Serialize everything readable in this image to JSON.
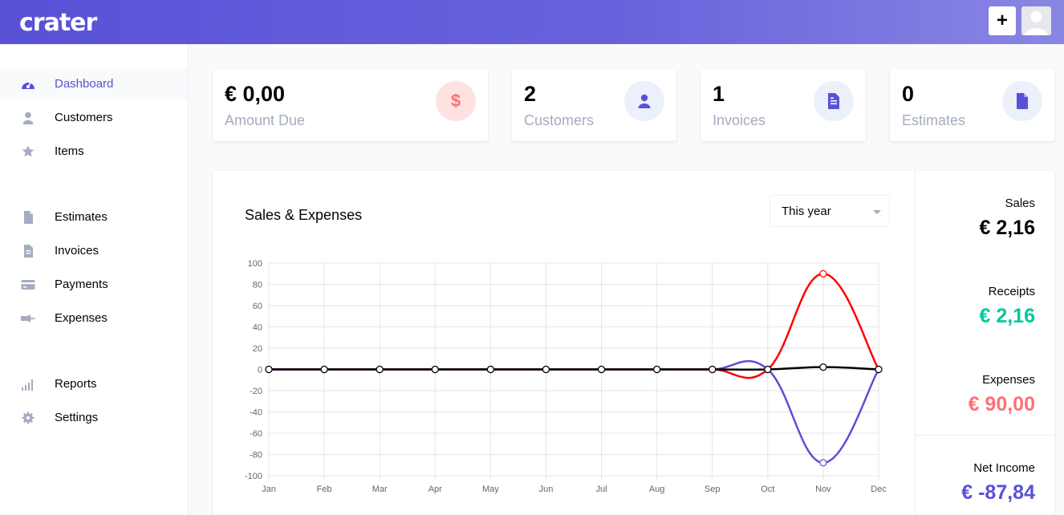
{
  "app": {
    "logo": "crater"
  },
  "header": {
    "add_label": "+"
  },
  "sidebar": {
    "items": [
      {
        "label": "Dashboard",
        "icon": "dashboard-icon",
        "active": true
      },
      {
        "label": "Customers",
        "icon": "user-icon"
      },
      {
        "label": "Items",
        "icon": "star-icon"
      },
      {
        "label": "Estimates",
        "icon": "document-icon"
      },
      {
        "label": "Invoices",
        "icon": "document-text-icon"
      },
      {
        "label": "Payments",
        "icon": "credit-card-icon"
      },
      {
        "label": "Expenses",
        "icon": "receipt-icon"
      },
      {
        "label": "Reports",
        "icon": "bar-chart-icon"
      },
      {
        "label": "Settings",
        "icon": "gear-icon"
      }
    ]
  },
  "stats": [
    {
      "value": "€ 0,00",
      "label": "Amount Due",
      "icon": "dollar-icon",
      "icon_color": "#fb7178",
      "icon_bg": "#fee2e2"
    },
    {
      "value": "2",
      "label": "Customers",
      "icon": "user-icon",
      "icon_color": "#5851d8",
      "icon_bg": "#ebf0fb"
    },
    {
      "value": "1",
      "label": "Invoices",
      "icon": "document-text-icon",
      "icon_color": "#5851d8",
      "icon_bg": "#ebf0fb"
    },
    {
      "value": "0",
      "label": "Estimates",
      "icon": "document-icon",
      "icon_color": "#5851d8",
      "icon_bg": "#ebf0fb"
    }
  ],
  "chart": {
    "title": "Sales & Expenses",
    "period": "This year"
  },
  "summary": {
    "sales_label": "Sales",
    "sales_value": "€ 2,16",
    "receipts_label": "Receipts",
    "receipts_value": "€ 2,16",
    "expenses_label": "Expenses",
    "expenses_value": "€ 90,00",
    "net_label": "Net Income",
    "net_value": "€ -87,84"
  },
  "colors": {
    "accent": "#5851d8",
    "sales": "#040405",
    "receipts": "#00c99c",
    "expenses": "#fb7178",
    "net": "#5851d8"
  },
  "chart_data": {
    "type": "line",
    "categories": [
      "Jan",
      "Feb",
      "Mar",
      "Apr",
      "May",
      "Jun",
      "Jul",
      "Aug",
      "Sep",
      "Oct",
      "Nov",
      "Dec"
    ],
    "ylim": [
      -100,
      100
    ],
    "yticks": [
      100,
      80,
      60,
      40,
      20,
      0,
      -20,
      -40,
      -60,
      -80,
      -100
    ],
    "grid": true,
    "series": [
      {
        "color": "#ff0000",
        "values": [
          0,
          0,
          0,
          0,
          0,
          0,
          0,
          0,
          0,
          0,
          90,
          0
        ]
      },
      {
        "color": "#5851d8",
        "values": [
          0,
          0,
          0,
          0,
          0,
          0,
          0,
          0,
          0,
          0,
          -87.84,
          0
        ]
      },
      {
        "color": "#000000",
        "values": [
          0,
          0,
          0,
          0,
          0,
          0,
          0,
          0,
          0,
          0,
          2.16,
          0
        ]
      }
    ]
  }
}
